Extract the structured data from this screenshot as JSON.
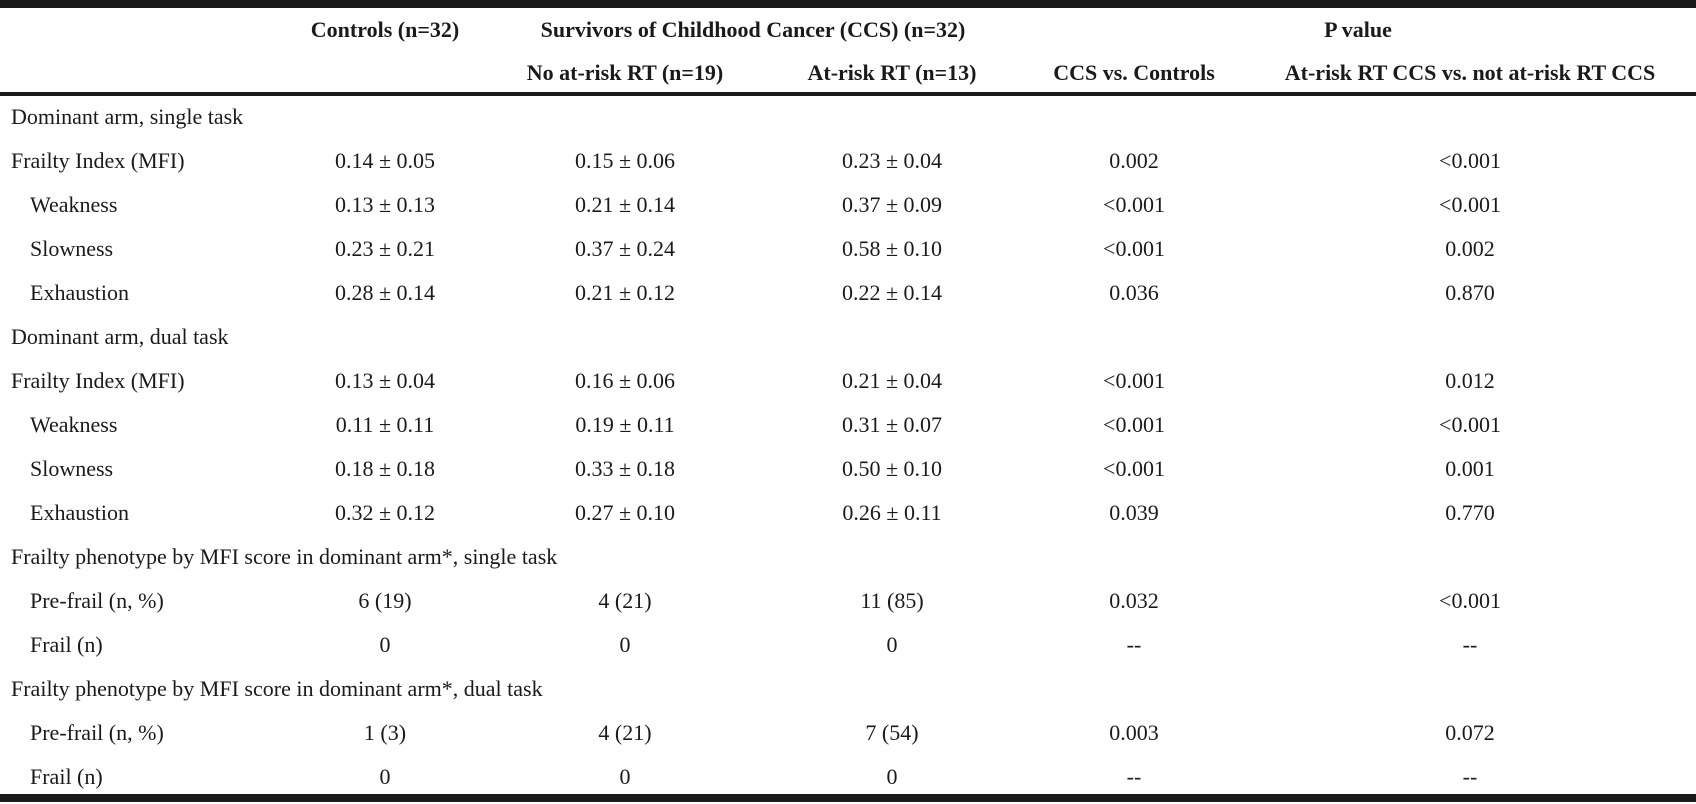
{
  "header": {
    "controls": "Controls (n=32)",
    "ccs_group": "Survivors of Childhood Cancer (CCS) (n=32)",
    "p_value": "P value",
    "no_at_risk": "No at-risk RT (n=19)",
    "at_risk": "At-risk RT (n=13)",
    "ccs_vs_controls": "CCS vs. Controls",
    "atrisk_vs_not": "At-risk RT CCS vs. not at-risk RT CCS"
  },
  "rows": [
    {
      "label": "Dominant arm, single task",
      "indent": false,
      "section": true,
      "controls": "",
      "no_at_risk": "",
      "at_risk": "",
      "p1": "",
      "p2": ""
    },
    {
      "label": "Frailty Index (MFI)",
      "indent": false,
      "section": false,
      "controls": "0.14 ± 0.05",
      "no_at_risk": "0.15 ± 0.06",
      "at_risk": "0.23 ± 0.04",
      "p1": "0.002",
      "p2": "<0.001"
    },
    {
      "label": "Weakness",
      "indent": true,
      "section": false,
      "controls": "0.13 ± 0.13",
      "no_at_risk": "0.21 ± 0.14",
      "at_risk": "0.37 ± 0.09",
      "p1": "<0.001",
      "p2": "<0.001"
    },
    {
      "label": "Slowness",
      "indent": true,
      "section": false,
      "controls": "0.23 ± 0.21",
      "no_at_risk": "0.37 ± 0.24",
      "at_risk": "0.58 ± 0.10",
      "p1": "<0.001",
      "p2": "0.002"
    },
    {
      "label": "Exhaustion",
      "indent": true,
      "section": false,
      "controls": "0.28 ± 0.14",
      "no_at_risk": "0.21 ± 0.12",
      "at_risk": "0.22 ± 0.14",
      "p1": "0.036",
      "p2": "0.870"
    },
    {
      "label": "Dominant arm, dual task",
      "indent": false,
      "section": true,
      "controls": "",
      "no_at_risk": "",
      "at_risk": "",
      "p1": "",
      "p2": ""
    },
    {
      "label": "Frailty Index (MFI)",
      "indent": false,
      "section": false,
      "controls": "0.13 ± 0.04",
      "no_at_risk": "0.16 ± 0.06",
      "at_risk": "0.21 ± 0.04",
      "p1": "<0.001",
      "p2": "0.012"
    },
    {
      "label": "Weakness",
      "indent": true,
      "section": false,
      "controls": "0.11 ± 0.11",
      "no_at_risk": "0.19 ± 0.11",
      "at_risk": "0.31 ± 0.07",
      "p1": "<0.001",
      "p2": "<0.001"
    },
    {
      "label": "Slowness",
      "indent": true,
      "section": false,
      "controls": "0.18 ± 0.18",
      "no_at_risk": "0.33 ± 0.18",
      "at_risk": "0.50 ± 0.10",
      "p1": "<0.001",
      "p2": "0.001"
    },
    {
      "label": "Exhaustion",
      "indent": true,
      "section": false,
      "controls": "0.32 ± 0.12",
      "no_at_risk": "0.27 ± 0.10",
      "at_risk": "0.26 ± 0.11",
      "p1": "0.039",
      "p2": "0.770"
    },
    {
      "label": "Frailty phenotype by MFI score in dominant arm*, single task",
      "indent": false,
      "section": true,
      "controls": "",
      "no_at_risk": "",
      "at_risk": "",
      "p1": "",
      "p2": ""
    },
    {
      "label": "Pre-frail (n, %)",
      "indent": true,
      "section": false,
      "controls": "6 (19)",
      "no_at_risk": "4 (21)",
      "at_risk": "11 (85)",
      "p1": "0.032",
      "p2": "<0.001"
    },
    {
      "label": "Frail (n)",
      "indent": true,
      "section": false,
      "controls": "0",
      "no_at_risk": "0",
      "at_risk": "0",
      "p1": "--",
      "p2": "--"
    },
    {
      "label": "Frailty phenotype by MFI score in dominant arm*, dual task",
      "indent": false,
      "section": true,
      "controls": "",
      "no_at_risk": "",
      "at_risk": "",
      "p1": "",
      "p2": ""
    },
    {
      "label": "Pre-frail (n, %)",
      "indent": true,
      "section": false,
      "controls": "1 (3)",
      "no_at_risk": "4 (21)",
      "at_risk": "7 (54)",
      "p1": "0.003",
      "p2": "0.072"
    },
    {
      "label": "Frail (n)",
      "indent": true,
      "section": false,
      "controls": "0",
      "no_at_risk": "0",
      "at_risk": "0",
      "p1": "--",
      "p2": "--"
    }
  ]
}
